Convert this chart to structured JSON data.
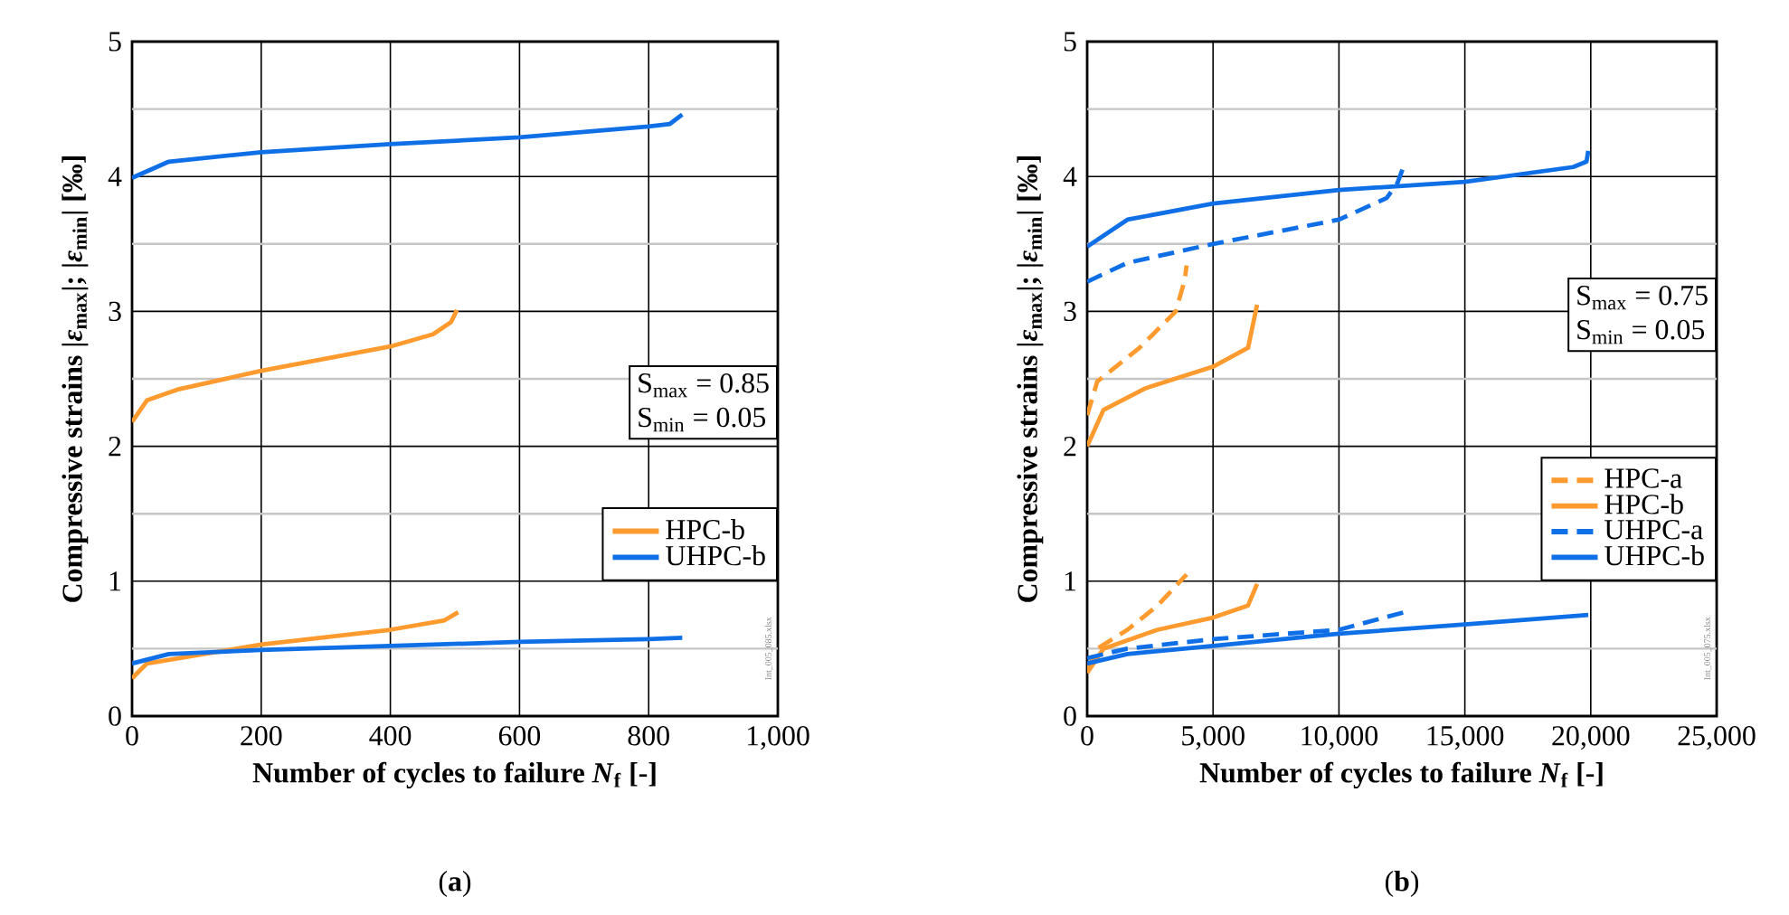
{
  "chart_data": [
    {
      "type": "line",
      "title": "(**a**)",
      "xlabel": "Number of cycles to failure *N*$_{f}$ [-]",
      "ylabel": "Compressive strains |*ε*$_{max}$|; |*ε*$_{min}$| [‰]",
      "xlim": [
        0,
        1000
      ],
      "ylim": [
        0,
        5
      ],
      "xticks": [
        0,
        200,
        400,
        600,
        800,
        {
          "value": 1000,
          "label": "1,000"
        }
      ],
      "yticks": [
        0,
        {
          "value": 0.5,
          "label": null
        },
        1,
        {
          "value": 1.5,
          "label": null
        },
        2,
        {
          "value": 2.5,
          "label": null
        },
        3,
        {
          "value": 3.5,
          "label": null
        },
        4,
        {
          "value": 4.5,
          "label": null
        },
        5
      ],
      "grid": true,
      "legend": "right",
      "annotations": [
        "S$_{max}$ = 0.85",
        "S$_{min}$ = 0.05",
        "Int_005_085.xlsx"
      ],
      "series": [
        {
          "name": "HPC-b",
          "color": "#ff9a2e",
          "x": [
            0,
            23,
            70,
            200,
            400,
            466,
            494,
            503
          ],
          "values": [
            2.18,
            2.34,
            2.42,
            2.56,
            2.74,
            2.83,
            2.92,
            3.01
          ]
        },
        {
          "name": "UHPC-b",
          "color": "#0f6fe6",
          "x": [
            0,
            57,
            200,
            400,
            600,
            800,
            833,
            852
          ],
          "values": [
            3.99,
            4.11,
            4.18,
            4.24,
            4.29,
            4.37,
            4.39,
            4.46
          ]
        },
        {
          "color": "#ff9a2e",
          "x": [
            0,
            23,
            200,
            400,
            484,
            505
          ],
          "values": [
            0.28,
            0.39,
            0.53,
            0.64,
            0.71,
            0.77
          ]
        },
        {
          "color": "#0f6fe6",
          "x": [
            0,
            57,
            200,
            400,
            600,
            800,
            852
          ],
          "values": [
            0.39,
            0.46,
            0.49,
            0.52,
            0.55,
            0.57,
            0.58
          ]
        }
      ]
    },
    {
      "type": "line",
      "title": "(**b**)",
      "xlabel": "Number of cycles to failure *N*$_{f}$ [-]",
      "ylabel": "Compressive strains |*ε*$_{max}$|; |*ε*$_{min}$| [‰]",
      "xlim": [
        0,
        25000
      ],
      "ylim": [
        0,
        5
      ],
      "xticks": [
        0,
        {
          "value": 5000,
          "label": "5,000"
        },
        {
          "value": 10000,
          "label": "10,000"
        },
        {
          "value": 15000,
          "label": "15,000"
        },
        {
          "value": 20000,
          "label": "20,000"
        },
        {
          "value": 25000,
          "label": "25,000"
        }
      ],
      "yticks": [
        0,
        {
          "value": 0.5,
          "label": null
        },
        1,
        {
          "value": 1.5,
          "label": null
        },
        2,
        {
          "value": 2.5,
          "label": null
        },
        3,
        {
          "value": 3.5,
          "label": null
        },
        4,
        {
          "value": 4.5,
          "label": null
        },
        5
      ],
      "grid": true,
      "legend": "right",
      "annotations": [
        "S$_{max}$ = 0.75",
        "S$_{min}$ = 0.05",
        "Int_005_075.xlsx"
      ],
      "series": [
        {
          "name": "HPC-a",
          "color": "#ff9a2e",
          "line_style": "dashed",
          "x": [
            0,
            400,
            2080,
            3520,
            3870,
            3950
          ],
          "values": [
            2.23,
            2.48,
            2.73,
            3.0,
            3.23,
            3.34
          ]
        },
        {
          "name": "HPC-b",
          "color": "#ff9a2e",
          "x": [
            0,
            650,
            2320,
            5000,
            6390,
            6750
          ],
          "values": [
            2.0,
            2.27,
            2.43,
            2.59,
            2.73,
            3.05
          ]
        },
        {
          "name": "UHPC-a",
          "color": "#0f6fe6",
          "line_style": "dashed",
          "x": [
            0,
            1600,
            5000,
            10000,
            11890,
            12320,
            12600
          ],
          "values": [
            3.22,
            3.36,
            3.5,
            3.68,
            3.84,
            3.95,
            4.09
          ]
        },
        {
          "name": "UHPC-b",
          "color": "#0f6fe6",
          "x": [
            0,
            1600,
            5000,
            10000,
            15000,
            19300,
            19830,
            19900
          ],
          "values": [
            3.48,
            3.68,
            3.8,
            3.9,
            3.96,
            4.07,
            4.11,
            4.19
          ]
        },
        {
          "color": "#ff9a2e",
          "line_style": "dashed",
          "x": [
            0,
            400,
            1600,
            2800,
            3950
          ],
          "values": [
            0.34,
            0.5,
            0.64,
            0.82,
            1.05
          ]
        },
        {
          "color": "#ff9a2e",
          "x": [
            0,
            650,
            2800,
            5000,
            6390,
            6750
          ],
          "values": [
            0.32,
            0.5,
            0.64,
            0.73,
            0.82,
            0.98
          ]
        },
        {
          "color": "#0f6fe6",
          "line_style": "dashed",
          "x": [
            0,
            1600,
            5000,
            10000,
            12600
          ],
          "values": [
            0.43,
            0.5,
            0.57,
            0.64,
            0.77
          ]
        },
        {
          "color": "#0f6fe6",
          "x": [
            0,
            1600,
            5000,
            10000,
            15000,
            19900
          ],
          "values": [
            0.39,
            0.46,
            0.52,
            0.61,
            0.68,
            0.75
          ]
        }
      ]
    }
  ]
}
